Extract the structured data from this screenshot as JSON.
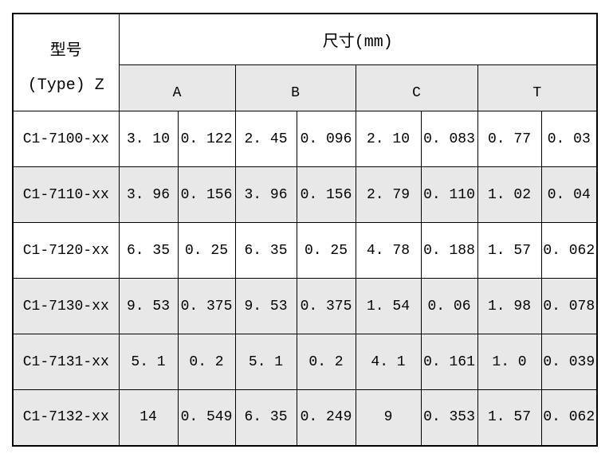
{
  "meta": {
    "colors": {
      "shaded_row_bg": "#e8e8e8",
      "border": "#000000",
      "background": "#ffffff"
    }
  },
  "table": {
    "header": {
      "type_label_cn": "型号",
      "type_label_en": "(Type) Z",
      "size_label": "尺寸(mm)",
      "groups": [
        "A",
        "B",
        "C",
        "T"
      ]
    },
    "rows": [
      {
        "cls": "",
        "model": "C1-7100-xx",
        "v": [
          "3. 10",
          "0. 122",
          "2. 45",
          "0. 096",
          "2. 10",
          "0. 083",
          "0. 77",
          "0. 03"
        ]
      },
      {
        "cls": "shaded",
        "model": "C1-7110-xx",
        "v": [
          "3. 96",
          "0. 156",
          "3. 96",
          "0. 156",
          "2. 79",
          "0. 110",
          "1. 02",
          "0. 04"
        ]
      },
      {
        "cls": "",
        "model": "C1-7120-xx",
        "v": [
          "6. 35",
          "0. 25",
          "6. 35",
          "0. 25",
          "4. 78",
          "0. 188",
          "1. 57",
          "0. 062"
        ]
      },
      {
        "cls": "shaded",
        "model": "C1-7130-xx",
        "v": [
          "9. 53",
          "0. 375",
          "9. 53",
          "0. 375",
          "1. 54",
          "0. 06",
          "1. 98",
          "0. 078"
        ]
      },
      {
        "cls": "shaded",
        "model": "C1-7131-xx",
        "v": [
          "5. 1",
          "0. 2",
          "5. 1",
          "0. 2",
          "4. 1",
          "0. 161",
          "1. 0",
          "0. 039"
        ]
      },
      {
        "cls": "shaded",
        "model": "C1-7132-xx",
        "v": [
          "14",
          "0. 549",
          "6. 35",
          "0. 249",
          "9",
          "0. 353",
          "1. 57",
          "0. 062"
        ]
      }
    ]
  }
}
